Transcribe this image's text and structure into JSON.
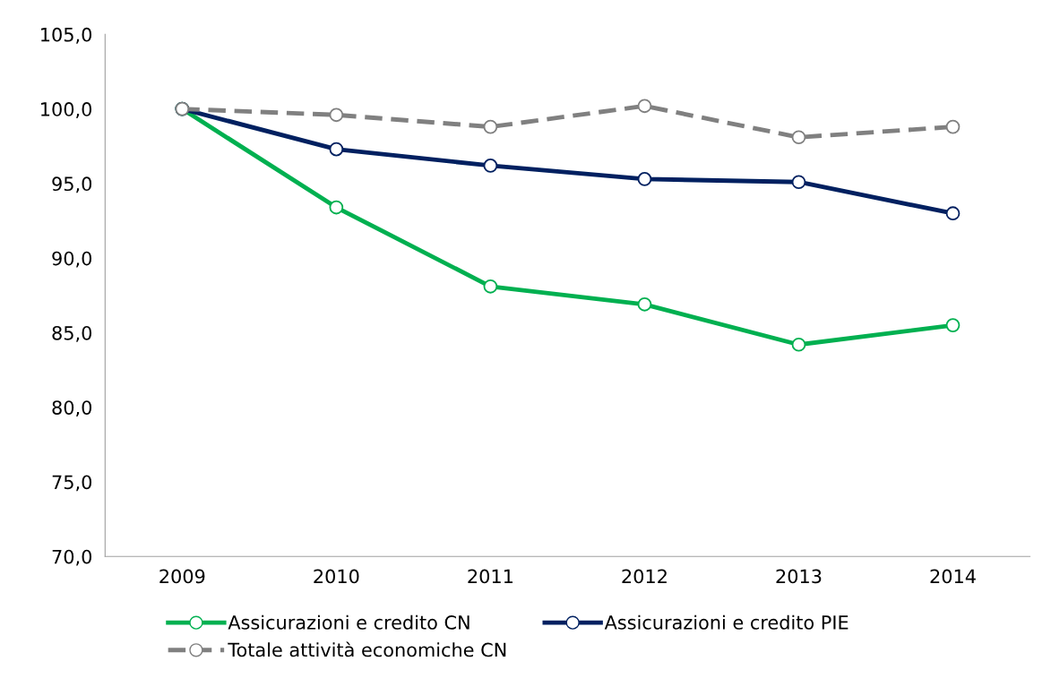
{
  "chart_data": {
    "type": "line",
    "categories": [
      "2009",
      "2010",
      "2011",
      "2012",
      "2013",
      "2014"
    ],
    "series": [
      {
        "name": "Assicurazioni e credito CN",
        "color": "#00b050",
        "values": [
          100.0,
          93.4,
          88.1,
          86.9,
          84.2,
          85.5
        ]
      },
      {
        "name": "Assicurazioni e credito PIE",
        "color": "#002060",
        "values": [
          100.0,
          97.3,
          96.2,
          95.3,
          95.1,
          93.0
        ]
      },
      {
        "name": "Totale attività economiche CN",
        "color": "#808080",
        "line_style": "dashed",
        "values": [
          100.0,
          99.6,
          98.8,
          100.2,
          98.1,
          98.8
        ]
      }
    ],
    "ylim": [
      70,
      105
    ],
    "yticks": [
      {
        "value": 70,
        "label": "70,0"
      },
      {
        "value": 75,
        "label": "75,0"
      },
      {
        "value": 80,
        "label": "80,0"
      },
      {
        "value": 85,
        "label": "85,0"
      },
      {
        "value": 90,
        "label": "90,0"
      },
      {
        "value": 95,
        "label": "95,0"
      },
      {
        "value": 100,
        "label": "100,0"
      },
      {
        "value": 105,
        "label": "105,0"
      }
    ],
    "marker": "circle",
    "grid": false,
    "legend": "bottom"
  }
}
